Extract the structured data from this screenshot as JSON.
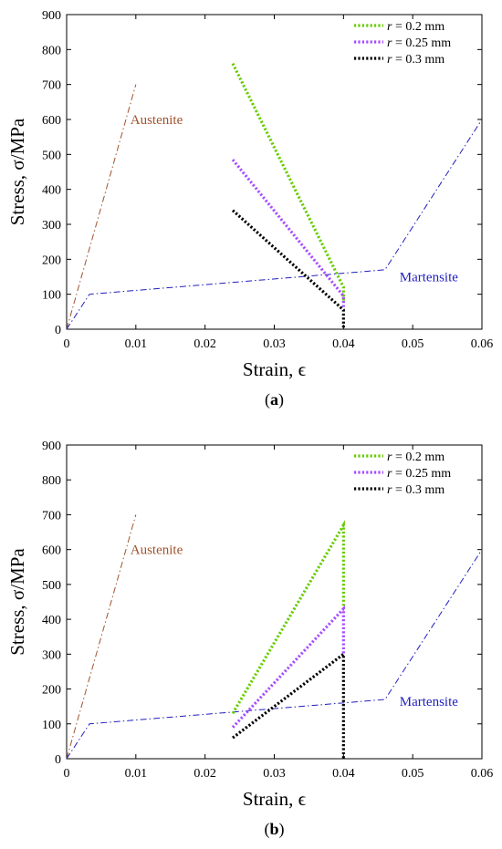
{
  "chart_data": [
    {
      "panel": "(a)",
      "panel_letter": "a",
      "type": "line",
      "xlabel": "Strain, ϵ",
      "ylabel": "Stress, σ/MPa",
      "xlim": [
        0,
        0.06
      ],
      "ylim": [
        0,
        900
      ],
      "xticks": [
        "0",
        "0.01",
        "0.02",
        "0.03",
        "0.04",
        "0.05",
        "0.06"
      ],
      "yticks": [
        "0",
        "100",
        "200",
        "300",
        "400",
        "500",
        "600",
        "700",
        "800",
        "900"
      ],
      "grid": false,
      "legend_position": "top-right",
      "series": [
        {
          "name": "r = 0.2 mm",
          "label_var": "r",
          "label_rest": " = 0.2 mm",
          "color": "#66cc00",
          "style": "dotted",
          "x": [
            0.024,
            0.04,
            0.04
          ],
          "y": [
            760,
            120,
            80
          ]
        },
        {
          "name": "r = 0.25 mm",
          "label_var": "r",
          "label_rest": " = 0.25 mm",
          "color": "#a64dff",
          "style": "dotted",
          "x": [
            0.024,
            0.04,
            0.04
          ],
          "y": [
            485,
            95,
            60
          ]
        },
        {
          "name": "r = 0.3 mm",
          "label_var": "r",
          "label_rest": " = 0.3 mm",
          "color": "#000000",
          "style": "dotted",
          "x": [
            0.024,
            0.04,
            0.04
          ],
          "y": [
            340,
            55,
            0
          ]
        }
      ],
      "material_curves": [
        {
          "label": "Austenite",
          "color": "#a0522d",
          "style": "dashdot",
          "x": [
            0,
            0.01
          ],
          "y": [
            0,
            700
          ],
          "label_at": [
            0.0092,
            600
          ]
        },
        {
          "label": "Martensite",
          "color": "#1f1fbf",
          "style": "dashdot",
          "x": [
            0,
            0.0033,
            0.046,
            0.06
          ],
          "y": [
            0,
            100,
            170,
            600
          ],
          "label_at": [
            0.0481,
            150
          ]
        }
      ]
    },
    {
      "panel": "(b)",
      "panel_letter": "b",
      "type": "line",
      "xlabel": "Strain, ϵ",
      "ylabel": "Stress, σ/MPa",
      "xlim": [
        0,
        0.06
      ],
      "ylim": [
        0,
        900
      ],
      "xticks": [
        "0",
        "0.01",
        "0.02",
        "0.03",
        "0.04",
        "0.05",
        "0.06"
      ],
      "yticks": [
        "0",
        "100",
        "200",
        "300",
        "400",
        "500",
        "600",
        "700",
        "800",
        "900"
      ],
      "grid": false,
      "legend_position": "top-right",
      "series": [
        {
          "name": "r = 0.2 mm",
          "label_var": "r",
          "label_rest": " = 0.2 mm",
          "color": "#66cc00",
          "style": "dotted",
          "x": [
            0.024,
            0.04,
            0.04
          ],
          "y": [
            130,
            670,
            430
          ]
        },
        {
          "name": "r = 0.25 mm",
          "label_var": "r",
          "label_rest": " = 0.25 mm",
          "color": "#a64dff",
          "style": "dotted",
          "x": [
            0.024,
            0.04,
            0.04
          ],
          "y": [
            90,
            430,
            300
          ]
        },
        {
          "name": "r = 0.3 mm",
          "label_var": "r",
          "label_rest": " = 0.3 mm",
          "color": "#000000",
          "style": "dotted",
          "x": [
            0.024,
            0.04,
            0.04
          ],
          "y": [
            60,
            300,
            0
          ]
        }
      ],
      "material_curves": [
        {
          "label": "Austenite",
          "color": "#a0522d",
          "style": "dashdot",
          "x": [
            0,
            0.01
          ],
          "y": [
            0,
            700
          ],
          "label_at": [
            0.0092,
            600
          ]
        },
        {
          "label": "Martensite",
          "color": "#1f1fbf",
          "style": "dashdot",
          "x": [
            0,
            0.0033,
            0.046,
            0.06
          ],
          "y": [
            0,
            100,
            170,
            600
          ],
          "label_at": [
            0.0481,
            165
          ]
        }
      ]
    }
  ]
}
